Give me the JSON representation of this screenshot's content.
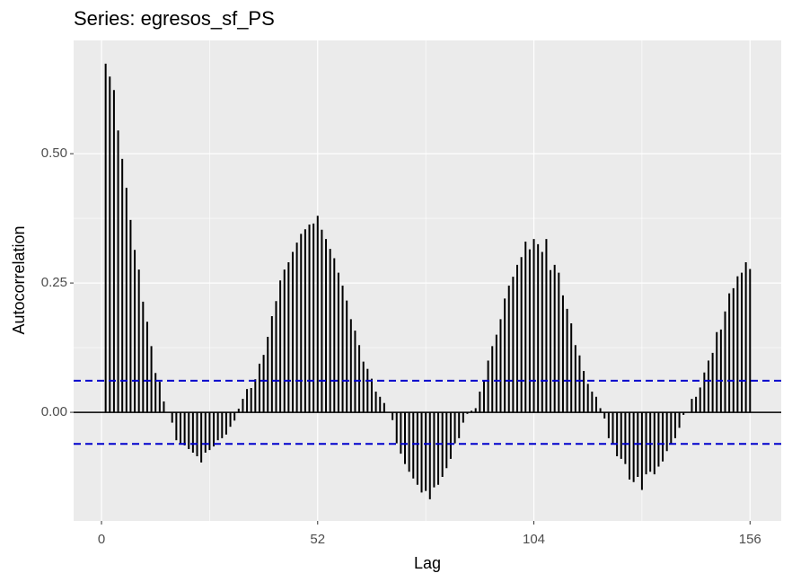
{
  "chart_data": {
    "type": "acf",
    "title": "Series: egresos_sf_PS",
    "xlabel": "Lag",
    "ylabel": "Autocorrelation",
    "x": [
      1,
      2,
      3,
      4,
      5,
      6,
      7,
      8,
      9,
      10,
      11,
      12,
      13,
      14,
      15,
      16,
      17,
      18,
      19,
      20,
      21,
      22,
      23,
      24,
      25,
      26,
      27,
      28,
      29,
      30,
      31,
      32,
      33,
      34,
      35,
      36,
      37,
      38,
      39,
      40,
      41,
      42,
      43,
      44,
      45,
      46,
      47,
      48,
      49,
      50,
      51,
      52,
      53,
      54,
      55,
      56,
      57,
      58,
      59,
      60,
      61,
      62,
      63,
      64,
      65,
      66,
      67,
      68,
      69,
      70,
      71,
      72,
      73,
      74,
      75,
      76,
      77,
      78,
      79,
      80,
      81,
      82,
      83,
      84,
      85,
      86,
      87,
      88,
      89,
      90,
      91,
      92,
      93,
      94,
      95,
      96,
      97,
      98,
      99,
      100,
      101,
      102,
      103,
      104,
      105,
      106,
      107,
      108,
      109,
      110,
      111,
      112,
      113,
      114,
      115,
      116,
      117,
      118,
      119,
      120,
      121,
      122,
      123,
      124,
      125,
      126,
      127,
      128,
      129,
      130,
      131,
      132,
      133,
      134,
      135,
      136,
      137,
      138,
      139,
      140,
      141,
      142,
      143,
      144,
      145,
      146,
      147,
      148,
      149,
      150,
      151,
      152,
      153,
      154,
      155,
      156
    ],
    "values": [
      0.674,
      0.649,
      0.623,
      0.545,
      0.49,
      0.434,
      0.372,
      0.314,
      0.276,
      0.214,
      0.175,
      0.128,
      0.076,
      0.059,
      0.021,
      0.0,
      -0.02,
      -0.054,
      -0.06,
      -0.064,
      -0.071,
      -0.078,
      -0.085,
      -0.097,
      -0.078,
      -0.073,
      -0.066,
      -0.054,
      -0.05,
      -0.043,
      -0.028,
      -0.016,
      0.007,
      0.026,
      0.045,
      0.047,
      0.064,
      0.094,
      0.111,
      0.146,
      0.186,
      0.215,
      0.255,
      0.276,
      0.29,
      0.31,
      0.328,
      0.345,
      0.354,
      0.363,
      0.365,
      0.38,
      0.353,
      0.335,
      0.316,
      0.298,
      0.27,
      0.245,
      0.216,
      0.18,
      0.158,
      0.13,
      0.098,
      0.084,
      0.065,
      0.04,
      0.03,
      0.018,
      0.0,
      -0.015,
      -0.06,
      -0.08,
      -0.1,
      -0.115,
      -0.128,
      -0.14,
      -0.155,
      -0.152,
      -0.168,
      -0.145,
      -0.14,
      -0.125,
      -0.108,
      -0.09,
      -0.06,
      -0.05,
      -0.02,
      -0.003,
      0.003,
      0.008,
      0.04,
      0.06,
      0.1,
      0.128,
      0.15,
      0.18,
      0.22,
      0.245,
      0.262,
      0.285,
      0.3,
      0.33,
      0.315,
      0.335,
      0.325,
      0.31,
      0.335,
      0.275,
      0.285,
      0.27,
      0.226,
      0.2,
      0.172,
      0.13,
      0.11,
      0.08,
      0.055,
      0.04,
      0.03,
      0.008,
      -0.012,
      -0.05,
      -0.06,
      -0.085,
      -0.09,
      -0.1,
      -0.13,
      -0.135,
      -0.125,
      -0.15,
      -0.12,
      -0.115,
      -0.12,
      -0.105,
      -0.095,
      -0.075,
      -0.06,
      -0.05,
      -0.03,
      -0.005,
      0.0,
      0.026,
      0.03,
      0.048,
      0.077,
      0.1,
      0.115,
      0.155,
      0.16,
      0.195,
      0.23,
      0.24,
      0.263,
      0.27,
      0.29,
      0.277
    ],
    "color": "#000000",
    "ci_lines": [
      0.061,
      -0.061
    ],
    "ci_color": "#0000cc",
    "xlim": [
      -6.7,
      163.5
    ],
    "ylim": [
      -0.21,
      0.719
    ],
    "xticks": [
      0,
      52,
      104,
      156
    ],
    "yticks": [
      {
        "value": 0,
        "label": "0.00"
      },
      {
        "value": 0.25,
        "label": "0.25"
      },
      {
        "value": 0.5,
        "label": "0.50"
      }
    ],
    "grid": true
  }
}
